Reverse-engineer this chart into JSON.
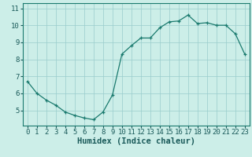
{
  "x": [
    0,
    1,
    2,
    3,
    4,
    5,
    6,
    7,
    8,
    9,
    10,
    11,
    12,
    13,
    14,
    15,
    16,
    17,
    18,
    19,
    20,
    21,
    22,
    23
  ],
  "y": [
    6.7,
    6.0,
    5.6,
    5.3,
    4.9,
    4.7,
    4.55,
    4.45,
    4.9,
    5.9,
    8.3,
    8.8,
    9.25,
    9.25,
    9.85,
    10.2,
    10.25,
    10.6,
    10.1,
    10.15,
    10.0,
    10.0,
    9.5,
    8.3
  ],
  "line_color": "#1a7a6e",
  "marker": "+",
  "marker_size": 3,
  "bg_color": "#cceee8",
  "grid_color": "#99cccc",
  "xlabel": "Humidex (Indice chaleur)",
  "xlim": [
    -0.5,
    23.5
  ],
  "ylim": [
    4.1,
    11.3
  ],
  "yticks": [
    5,
    6,
    7,
    8,
    9,
    10,
    11
  ],
  "xticks": [
    0,
    1,
    2,
    3,
    4,
    5,
    6,
    7,
    8,
    9,
    10,
    11,
    12,
    13,
    14,
    15,
    16,
    17,
    18,
    19,
    20,
    21,
    22,
    23
  ],
  "xlabel_fontsize": 7.5,
  "tick_fontsize": 6.5,
  "tick_color": "#1a5a5a",
  "label_color": "#1a5a5a"
}
